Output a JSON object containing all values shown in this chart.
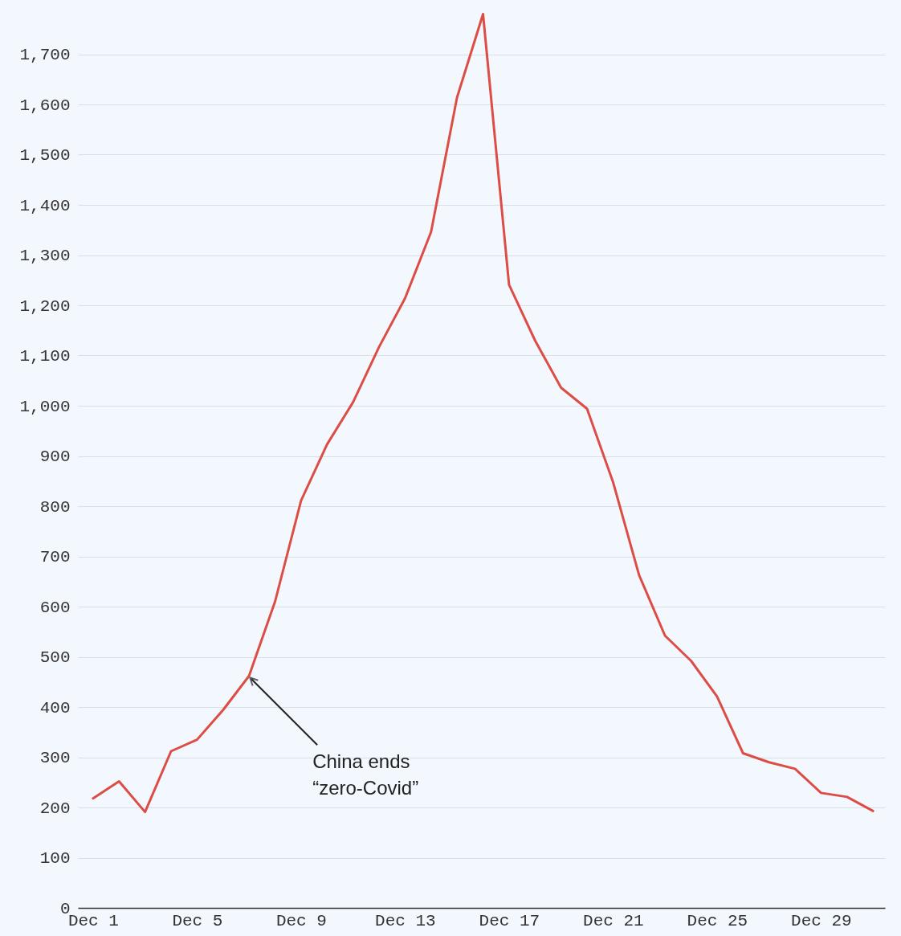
{
  "chart_data": {
    "type": "line",
    "x": [
      "--12-01",
      "--12-02",
      "--12-03",
      "--12-04",
      "--12-05",
      "--12-06",
      "--12-07",
      "--12-08",
      "--12-09",
      "--12-10",
      "--12-11",
      "--12-12",
      "--12-13",
      "--12-14",
      "--12-15",
      "--12-16",
      "--12-17",
      "--12-18",
      "--12-19",
      "--12-20",
      "--12-21",
      "--12-22",
      "--12-23",
      "--12-24",
      "--12-25",
      "--12-26",
      "--12-27",
      "--12-28",
      "--12-29",
      "--12-30",
      "--12-31"
    ],
    "series": [
      {
        "color": "#dc4d45",
        "values": [
          218,
          252,
          191,
          312,
          335,
          394,
          462,
          610,
          811,
          923,
          1007,
          1117,
          1214,
          1346,
          1614,
          1780,
          1241,
          1130,
          1036,
          994,
          848,
          663,
          542,
          492,
          421,
          308,
          290,
          277,
          229,
          221,
          193
        ]
      }
    ],
    "xlim": [
      "--11-30T10:00",
      "--12-31T11:00"
    ],
    "xticks": [
      {
        "value": "--12-01",
        "label": "Dec 1"
      },
      {
        "value": "--12-05",
        "label": "Dec 5"
      },
      {
        "value": "--12-09",
        "label": "Dec 9"
      },
      {
        "value": "--12-13",
        "label": "Dec 13"
      },
      {
        "value": "--12-17",
        "label": "Dec 17"
      },
      {
        "value": "--12-21",
        "label": "Dec 21"
      },
      {
        "value": "--12-25",
        "label": "Dec 25"
      },
      {
        "value": "--12-29",
        "label": "Dec 29"
      }
    ],
    "ylim": [
      0,
      1800
    ],
    "yticks": [
      0,
      100,
      200,
      300,
      400,
      500,
      600,
      700,
      800,
      900,
      {
        "value": 1000,
        "label": "1,000"
      },
      {
        "value": 1100,
        "label": "1,100"
      },
      {
        "value": 1200,
        "label": "1,200"
      },
      {
        "value": 1300,
        "label": "1,300"
      },
      {
        "value": 1400,
        "label": "1,400"
      },
      {
        "value": 1500,
        "label": "1,500"
      },
      {
        "value": 1600,
        "label": "1,600"
      },
      {
        "value": 1700,
        "label": "1,700"
      }
    ],
    "grid": "y",
    "marker": "none",
    "line_style": "solid",
    "annotations": [
      {
        "text": "China ends\n“zero-Covid”",
        "x": "--12-07",
        "y": 462
      }
    ]
  }
}
